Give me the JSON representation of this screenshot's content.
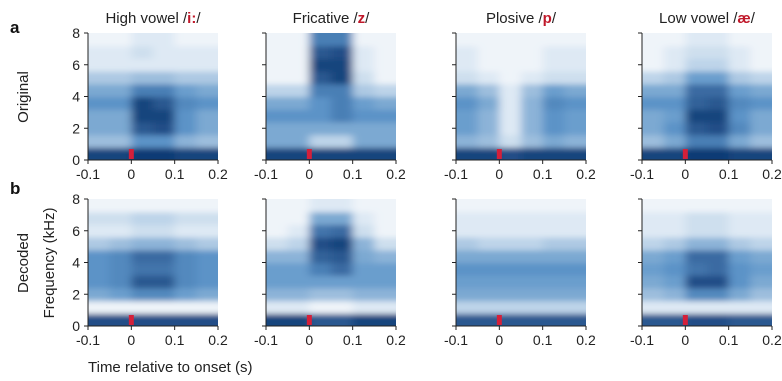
{
  "figure": {
    "panel_labels": [
      "a",
      "b"
    ],
    "row_labels": [
      "Original",
      "Decoded"
    ],
    "ylabel": "Frequency (kHz)",
    "xlabel": "Time relative to onset (s)"
  },
  "colors": {
    "colormap_low": "#ffffff",
    "colormap_mid": "#5b93c7",
    "colormap_high": "#08306b",
    "title_plain": "#222222",
    "title_phoneme": "#c0182a",
    "onset_marker": "#d4203a"
  },
  "chart_data": [
    {
      "type": "heatmap",
      "row": "Original",
      "title_prefix": "High vowel /",
      "title_phoneme": "i:",
      "title_suffix": "/",
      "xlabel": "",
      "ylabel": "",
      "xlim": [
        -0.1,
        0.2
      ],
      "ylim": [
        0,
        8
      ],
      "xticks": [
        "-0.1",
        "0",
        "0.1",
        "0.2"
      ],
      "yticks": [
        "0",
        "2",
        "4",
        "6",
        "8"
      ],
      "onset_x": 0,
      "freq_bands_khz": [
        0.4,
        1.2,
        2,
        2.8,
        3.6,
        4.4,
        5.2,
        6,
        6.8,
        7.6
      ],
      "time_bins_s": [
        -0.075,
        -0.025,
        0.025,
        0.075,
        0.125,
        0.175
      ],
      "intensity": [
        [
          0.9,
          0.9,
          0.95,
          0.95,
          0.9,
          0.9
        ],
        [
          0.3,
          0.3,
          0.5,
          0.5,
          0.35,
          0.3
        ],
        [
          0.4,
          0.4,
          0.8,
          0.85,
          0.5,
          0.4
        ],
        [
          0.4,
          0.4,
          0.9,
          0.9,
          0.5,
          0.4
        ],
        [
          0.5,
          0.5,
          0.9,
          0.8,
          0.55,
          0.5
        ],
        [
          0.4,
          0.4,
          0.6,
          0.6,
          0.45,
          0.4
        ],
        [
          0.25,
          0.25,
          0.3,
          0.3,
          0.25,
          0.25
        ],
        [
          0.1,
          0.1,
          0.1,
          0.1,
          0.1,
          0.1
        ],
        [
          0.1,
          0.1,
          0.15,
          0.1,
          0.1,
          0.1
        ],
        [
          0.05,
          0.05,
          0.1,
          0.1,
          0.05,
          0.05
        ]
      ]
    },
    {
      "type": "heatmap",
      "row": "Original",
      "title_prefix": "Fricative /",
      "title_phoneme": "z",
      "title_suffix": "/",
      "xlabel": "",
      "ylabel": "",
      "xlim": [
        -0.1,
        0.2
      ],
      "ylim": [
        0,
        8
      ],
      "xticks": [
        "-0.1",
        "0",
        "0.1",
        "0.2"
      ],
      "yticks": [],
      "onset_x": 0,
      "freq_bands_khz": [
        0.4,
        1.2,
        2,
        2.8,
        3.6,
        4.4,
        5.2,
        6,
        6.8,
        7.6
      ],
      "time_bins_s": [
        -0.075,
        -0.025,
        0.025,
        0.075,
        0.125,
        0.175
      ],
      "intensity": [
        [
          0.9,
          0.9,
          0.9,
          0.9,
          0.9,
          0.9
        ],
        [
          0.4,
          0.4,
          0.2,
          0.2,
          0.4,
          0.4
        ],
        [
          0.4,
          0.4,
          0.4,
          0.4,
          0.4,
          0.4
        ],
        [
          0.5,
          0.5,
          0.5,
          0.6,
          0.5,
          0.5
        ],
        [
          0.4,
          0.4,
          0.5,
          0.6,
          0.45,
          0.4
        ],
        [
          0.2,
          0.2,
          0.6,
          0.6,
          0.25,
          0.2
        ],
        [
          0.05,
          0.05,
          0.8,
          0.9,
          0.15,
          0.05
        ],
        [
          0.05,
          0.05,
          0.9,
          0.9,
          0.1,
          0.05
        ],
        [
          0.05,
          0.05,
          0.8,
          0.85,
          0.1,
          0.05
        ],
        [
          0.05,
          0.05,
          0.6,
          0.6,
          0.05,
          0.05
        ]
      ]
    },
    {
      "type": "heatmap",
      "row": "Original",
      "title_prefix": "Plosive /",
      "title_phoneme": "p",
      "title_suffix": "/",
      "xlabel": "",
      "ylabel": "",
      "xlim": [
        -0.1,
        0.2
      ],
      "ylim": [
        0,
        8
      ],
      "xticks": [
        "-0.1",
        "0",
        "0.1",
        "0.2"
      ],
      "yticks": [],
      "onset_x": 0,
      "freq_bands_khz": [
        0.4,
        1.2,
        2,
        2.8,
        3.6,
        4.4,
        5.2,
        6,
        6.8,
        7.6
      ],
      "time_bins_s": [
        -0.075,
        -0.025,
        0.025,
        0.075,
        0.125,
        0.175
      ],
      "intensity": [
        [
          0.9,
          0.9,
          0.85,
          0.9,
          0.9,
          0.9
        ],
        [
          0.35,
          0.3,
          0.15,
          0.3,
          0.4,
          0.35
        ],
        [
          0.45,
          0.35,
          0.1,
          0.35,
          0.5,
          0.45
        ],
        [
          0.45,
          0.35,
          0.1,
          0.35,
          0.5,
          0.45
        ],
        [
          0.5,
          0.4,
          0.1,
          0.35,
          0.55,
          0.5
        ],
        [
          0.4,
          0.3,
          0.1,
          0.3,
          0.45,
          0.4
        ],
        [
          0.15,
          0.1,
          0.05,
          0.1,
          0.15,
          0.15
        ],
        [
          0.1,
          0.05,
          0.05,
          0.05,
          0.1,
          0.1
        ],
        [
          0.1,
          0.05,
          0.05,
          0.05,
          0.1,
          0.1
        ],
        [
          0.05,
          0.05,
          0.05,
          0.05,
          0.05,
          0.05
        ]
      ]
    },
    {
      "type": "heatmap",
      "row": "Original",
      "title_prefix": "Low vowel /",
      "title_phoneme": "æ",
      "title_suffix": "/",
      "xlabel": "",
      "ylabel": "",
      "xlim": [
        -0.1,
        0.2
      ],
      "ylim": [
        0,
        8
      ],
      "xticks": [
        "-0.1",
        "0",
        "0.1",
        "0.2"
      ],
      "yticks": [],
      "onset_x": 0,
      "freq_bands_khz": [
        0.4,
        1.2,
        2,
        2.8,
        3.6,
        4.4,
        5.2,
        6,
        6.8,
        7.6
      ],
      "time_bins_s": [
        -0.075,
        -0.025,
        0.025,
        0.075,
        0.125,
        0.175
      ],
      "intensity": [
        [
          0.9,
          0.9,
          0.95,
          0.95,
          0.9,
          0.9
        ],
        [
          0.3,
          0.4,
          0.6,
          0.6,
          0.4,
          0.3
        ],
        [
          0.4,
          0.5,
          0.8,
          0.85,
          0.55,
          0.4
        ],
        [
          0.4,
          0.45,
          0.9,
          0.9,
          0.5,
          0.4
        ],
        [
          0.5,
          0.5,
          0.75,
          0.8,
          0.55,
          0.5
        ],
        [
          0.4,
          0.4,
          0.7,
          0.7,
          0.45,
          0.4
        ],
        [
          0.2,
          0.25,
          0.45,
          0.45,
          0.25,
          0.2
        ],
        [
          0.05,
          0.1,
          0.2,
          0.2,
          0.1,
          0.05
        ],
        [
          0.05,
          0.1,
          0.15,
          0.15,
          0.1,
          0.05
        ],
        [
          0.05,
          0.05,
          0.1,
          0.1,
          0.05,
          0.05
        ]
      ]
    },
    {
      "type": "heatmap",
      "row": "Decoded",
      "title_prefix": "",
      "title_phoneme": "",
      "title_suffix": "",
      "xlabel": "",
      "ylabel": "",
      "xlim": [
        -0.1,
        0.2
      ],
      "ylim": [
        0,
        8
      ],
      "xticks": [
        "-0.1",
        "0",
        "0.1",
        "0.2"
      ],
      "yticks": [
        "0",
        "2",
        "4",
        "6",
        "8"
      ],
      "onset_x": 0,
      "freq_bands_khz": [
        0.4,
        1.2,
        2,
        2.8,
        3.6,
        4.4,
        5.2,
        6,
        6.8,
        7.6
      ],
      "time_bins_s": [
        -0.075,
        -0.025,
        0.025,
        0.075,
        0.125,
        0.175
      ],
      "intensity": [
        [
          0.85,
          0.85,
          0.85,
          0.85,
          0.85,
          0.85
        ],
        [
          0.05,
          0.05,
          0.05,
          0.05,
          0.05,
          0.05
        ],
        [
          0.4,
          0.45,
          0.55,
          0.55,
          0.45,
          0.4
        ],
        [
          0.5,
          0.55,
          0.8,
          0.8,
          0.55,
          0.5
        ],
        [
          0.5,
          0.55,
          0.65,
          0.65,
          0.55,
          0.5
        ],
        [
          0.5,
          0.55,
          0.7,
          0.7,
          0.55,
          0.5
        ],
        [
          0.25,
          0.3,
          0.35,
          0.35,
          0.3,
          0.25
        ],
        [
          0.1,
          0.1,
          0.15,
          0.15,
          0.1,
          0.1
        ],
        [
          0.15,
          0.15,
          0.2,
          0.2,
          0.15,
          0.15
        ],
        [
          0.05,
          0.05,
          0.05,
          0.05,
          0.05,
          0.05
        ]
      ]
    },
    {
      "type": "heatmap",
      "row": "Decoded",
      "title_prefix": "",
      "title_phoneme": "",
      "title_suffix": "",
      "xlabel": "",
      "ylabel": "",
      "xlim": [
        -0.1,
        0.2
      ],
      "ylim": [
        0,
        8
      ],
      "xticks": [
        "-0.1",
        "0",
        "0.1",
        "0.2"
      ],
      "yticks": [],
      "onset_x": 0,
      "freq_bands_khz": [
        0.4,
        1.2,
        2,
        2.8,
        3.6,
        4.4,
        5.2,
        6,
        6.8,
        7.6
      ],
      "time_bins_s": [
        -0.075,
        -0.025,
        0.025,
        0.075,
        0.125,
        0.175
      ],
      "intensity": [
        [
          0.9,
          0.9,
          0.8,
          0.8,
          0.9,
          0.9
        ],
        [
          0.1,
          0.1,
          0.05,
          0.05,
          0.1,
          0.1
        ],
        [
          0.35,
          0.35,
          0.3,
          0.3,
          0.35,
          0.35
        ],
        [
          0.45,
          0.45,
          0.45,
          0.45,
          0.45,
          0.45
        ],
        [
          0.45,
          0.45,
          0.6,
          0.7,
          0.45,
          0.45
        ],
        [
          0.35,
          0.35,
          0.75,
          0.8,
          0.4,
          0.35
        ],
        [
          0.15,
          0.2,
          0.85,
          0.9,
          0.35,
          0.15
        ],
        [
          0.05,
          0.1,
          0.65,
          0.7,
          0.15,
          0.05
        ],
        [
          0.05,
          0.05,
          0.4,
          0.4,
          0.1,
          0.05
        ],
        [
          0.05,
          0.05,
          0.1,
          0.1,
          0.05,
          0.05
        ]
      ]
    },
    {
      "type": "heatmap",
      "row": "Decoded",
      "title_prefix": "",
      "title_phoneme": "",
      "title_suffix": "",
      "xlabel": "",
      "ylabel": "",
      "xlim": [
        -0.1,
        0.2
      ],
      "ylim": [
        0,
        8
      ],
      "xticks": [
        "-0.1",
        "0",
        "0.1",
        "0.2"
      ],
      "yticks": [],
      "onset_x": 0,
      "freq_bands_khz": [
        0.4,
        1.2,
        2,
        2.8,
        3.6,
        4.4,
        5.2,
        6,
        6.8,
        7.6
      ],
      "time_bins_s": [
        -0.075,
        -0.025,
        0.025,
        0.075,
        0.125,
        0.175
      ],
      "intensity": [
        [
          0.8,
          0.8,
          0.8,
          0.8,
          0.8,
          0.8
        ],
        [
          0.2,
          0.2,
          0.2,
          0.2,
          0.2,
          0.2
        ],
        [
          0.4,
          0.4,
          0.4,
          0.4,
          0.4,
          0.4
        ],
        [
          0.45,
          0.45,
          0.45,
          0.45,
          0.45,
          0.45
        ],
        [
          0.5,
          0.5,
          0.5,
          0.5,
          0.5,
          0.5
        ],
        [
          0.4,
          0.4,
          0.4,
          0.4,
          0.4,
          0.4
        ],
        [
          0.25,
          0.2,
          0.2,
          0.2,
          0.25,
          0.25
        ],
        [
          0.1,
          0.1,
          0.1,
          0.1,
          0.1,
          0.1
        ],
        [
          0.1,
          0.1,
          0.1,
          0.1,
          0.1,
          0.1
        ],
        [
          0.05,
          0.05,
          0.05,
          0.05,
          0.05,
          0.05
        ]
      ]
    },
    {
      "type": "heatmap",
      "row": "Decoded",
      "title_prefix": "",
      "title_phoneme": "",
      "title_suffix": "",
      "xlabel": "",
      "ylabel": "",
      "xlim": [
        -0.1,
        0.2
      ],
      "ylim": [
        0,
        8
      ],
      "xticks": [
        "-0.1",
        "0",
        "0.1",
        "0.2"
      ],
      "yticks": [],
      "onset_x": 0,
      "freq_bands_khz": [
        0.4,
        1.2,
        2,
        2.8,
        3.6,
        4.4,
        5.2,
        6,
        6.8,
        7.6
      ],
      "time_bins_s": [
        -0.075,
        -0.025,
        0.025,
        0.075,
        0.125,
        0.175
      ],
      "intensity": [
        [
          0.8,
          0.8,
          0.85,
          0.85,
          0.8,
          0.8
        ],
        [
          0.1,
          0.1,
          0.1,
          0.1,
          0.1,
          0.1
        ],
        [
          0.3,
          0.35,
          0.55,
          0.55,
          0.4,
          0.3
        ],
        [
          0.4,
          0.45,
          0.85,
          0.85,
          0.5,
          0.4
        ],
        [
          0.45,
          0.5,
          0.65,
          0.7,
          0.5,
          0.45
        ],
        [
          0.4,
          0.45,
          0.7,
          0.7,
          0.45,
          0.4
        ],
        [
          0.2,
          0.25,
          0.35,
          0.35,
          0.25,
          0.2
        ],
        [
          0.1,
          0.1,
          0.15,
          0.15,
          0.1,
          0.1
        ],
        [
          0.1,
          0.1,
          0.15,
          0.15,
          0.1,
          0.1
        ],
        [
          0.05,
          0.05,
          0.05,
          0.05,
          0.05,
          0.05
        ]
      ]
    }
  ]
}
